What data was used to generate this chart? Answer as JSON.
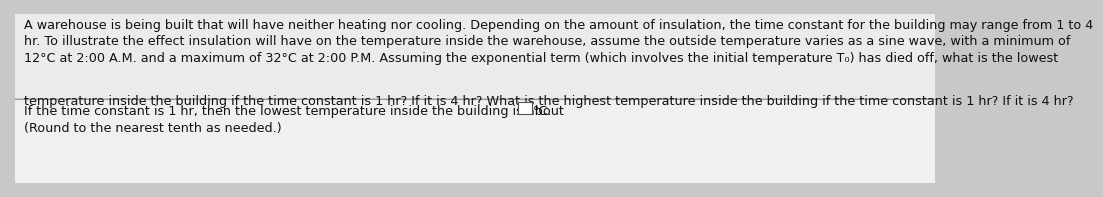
{
  "background_color": "#c8c8c8",
  "top_box_color": "#ebebeb",
  "bottom_box_color": "#f0f0f0",
  "divider_color": "#999999",
  "text_color": "#111111",
  "paragraph1_line1": "A warehouse is being built that will have neither heating nor cooling. Depending on the amount of insulation, the time constant for the building may range from 1 to 4",
  "paragraph1_line2": "hr. To illustrate the effect insulation will have on the temperature inside the warehouse, assume the outside temperature varies as a sine wave, with a minimum of",
  "paragraph1_line3": "12°C at 2:00 A.M. and a maximum of 32°C at 2:00 P.M. Assuming the exponential term (which involves the initial temperature T₀) has died off, what is the lowest",
  "paragraph1_line4": "temperature inside the building if the time constant is 1 hr? If it is 4 hr? What is the highest temperature inside the building if the time constant is 1 hr? If it is 4 hr?",
  "line2_prefix": "If the time constant is 1 hr, then the lowest temperature inside the building is about ",
  "line2_suffix": "°C.",
  "line3": "(Round to the nearest tenth as needed.)",
  "fontsize_main": 9.2
}
